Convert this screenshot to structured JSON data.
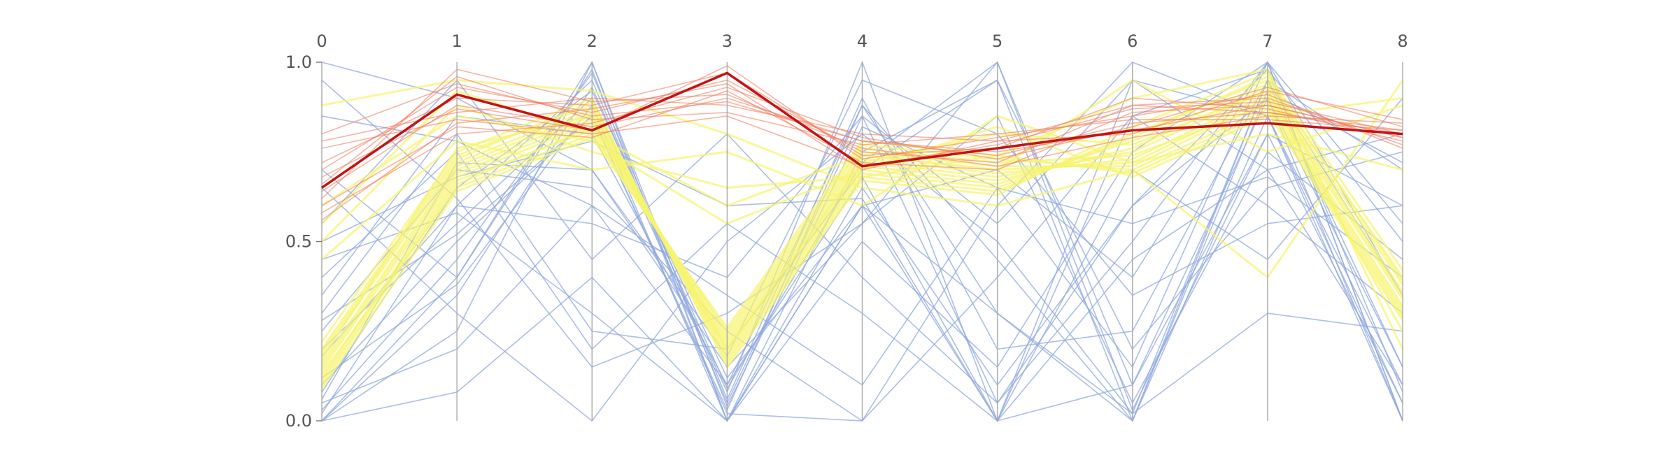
{
  "chart_data": {
    "type": "parallel-coordinates",
    "axes": [
      "0",
      "1",
      "2",
      "3",
      "4",
      "5",
      "6",
      "7",
      "8"
    ],
    "ylim": [
      0,
      1
    ],
    "yticks": [
      "0.0",
      "0.5",
      "1.0"
    ],
    "colors": {
      "low": "#8fa8de",
      "mid": "#f7f46e",
      "high": "#f0785a",
      "highlight": "#c41212"
    },
    "highlight": {
      "name": "",
      "values": [
        0.65,
        0.91,
        0.81,
        0.97,
        0.71,
        0.76,
        0.81,
        0.83,
        0.8
      ]
    },
    "series": [
      {
        "values": [
          0.64,
          0.88,
          0.82,
          0.9,
          0.78,
          0.74,
          0.83,
          0.86,
          0.8
        ],
        "color": "high"
      },
      {
        "values": [
          0.7,
          0.93,
          0.86,
          0.95,
          0.75,
          0.72,
          0.88,
          0.9,
          0.77
        ],
        "color": "high"
      },
      {
        "values": [
          0.78,
          0.86,
          0.9,
          0.88,
          0.8,
          0.78,
          0.8,
          0.92,
          0.84
        ],
        "color": "high"
      },
      {
        "values": [
          0.6,
          0.82,
          0.79,
          0.92,
          0.72,
          0.7,
          0.86,
          0.88,
          0.79
        ],
        "color": "high"
      },
      {
        "values": [
          0.66,
          0.96,
          0.84,
          0.86,
          0.77,
          0.8,
          0.84,
          0.84,
          0.81
        ],
        "color": "high"
      },
      {
        "values": [
          0.72,
          0.9,
          0.88,
          0.97,
          0.74,
          0.76,
          0.9,
          0.87,
          0.78
        ],
        "color": "high"
      },
      {
        "values": [
          0.58,
          0.8,
          0.83,
          0.93,
          0.79,
          0.73,
          0.82,
          0.93,
          0.82
        ],
        "color": "high"
      },
      {
        "values": [
          0.76,
          0.84,
          0.8,
          0.85,
          0.71,
          0.77,
          0.87,
          0.89,
          0.8
        ],
        "color": "high"
      },
      {
        "values": [
          0.62,
          0.98,
          0.89,
          0.91,
          0.76,
          0.71,
          0.79,
          0.85,
          0.83
        ],
        "color": "high"
      },
      {
        "values": [
          0.68,
          0.87,
          0.81,
          0.99,
          0.73,
          0.79,
          0.85,
          0.91,
          0.76
        ],
        "color": "high"
      },
      {
        "values": [
          0.8,
          0.94,
          0.85,
          0.89,
          0.78,
          0.75,
          0.81,
          0.88,
          0.79
        ],
        "color": "high"
      },
      {
        "values": [
          0.56,
          0.83,
          0.87,
          0.94,
          0.7,
          0.78,
          0.88,
          0.86,
          0.81
        ],
        "color": "high"
      },
      {
        "values": [
          0.15,
          0.7,
          0.85,
          0.2,
          0.72,
          0.68,
          0.75,
          0.92,
          0.35
        ],
        "color": "mid"
      },
      {
        "values": [
          0.12,
          0.68,
          0.83,
          0.22,
          0.74,
          0.7,
          0.72,
          0.9,
          0.32
        ],
        "color": "mid"
      },
      {
        "values": [
          0.18,
          0.72,
          0.87,
          0.18,
          0.7,
          0.66,
          0.78,
          0.94,
          0.38
        ],
        "color": "mid"
      },
      {
        "values": [
          0.1,
          0.66,
          0.82,
          0.24,
          0.76,
          0.72,
          0.74,
          0.88,
          0.3
        ],
        "color": "mid"
      },
      {
        "values": [
          0.2,
          0.74,
          0.88,
          0.16,
          0.68,
          0.64,
          0.8,
          0.95,
          0.4
        ],
        "color": "mid"
      },
      {
        "values": [
          0.14,
          0.69,
          0.84,
          0.21,
          0.73,
          0.69,
          0.73,
          0.91,
          0.34
        ],
        "color": "mid"
      },
      {
        "values": [
          0.16,
          0.71,
          0.86,
          0.19,
          0.71,
          0.67,
          0.76,
          0.93,
          0.36
        ],
        "color": "mid"
      },
      {
        "values": [
          0.11,
          0.67,
          0.81,
          0.23,
          0.75,
          0.71,
          0.71,
          0.89,
          0.31
        ],
        "color": "mid"
      },
      {
        "values": [
          0.19,
          0.73,
          0.89,
          0.17,
          0.69,
          0.65,
          0.79,
          0.96,
          0.39
        ],
        "color": "mid"
      },
      {
        "values": [
          0.13,
          0.65,
          0.8,
          0.25,
          0.77,
          0.73,
          0.7,
          0.87,
          0.29
        ],
        "color": "mid"
      },
      {
        "values": [
          0.22,
          0.75,
          0.9,
          0.15,
          0.67,
          0.63,
          0.82,
          0.97,
          0.42
        ],
        "color": "mid"
      },
      {
        "values": [
          0.09,
          0.64,
          0.79,
          0.26,
          0.78,
          0.74,
          0.69,
          0.86,
          0.28
        ],
        "color": "mid"
      },
      {
        "values": [
          0.17,
          0.76,
          0.85,
          0.2,
          0.72,
          0.8,
          0.77,
          0.92,
          0.25
        ],
        "color": "mid"
      },
      {
        "values": [
          0.6,
          0.85,
          0.78,
          0.55,
          0.7,
          0.82,
          0.68,
          0.85,
          0.9
        ],
        "color": "mid"
      },
      {
        "values": [
          0.55,
          0.92,
          0.8,
          0.6,
          0.74,
          0.7,
          0.95,
          0.75,
          0.88
        ],
        "color": "mid"
      },
      {
        "values": [
          0.88,
          0.95,
          0.92,
          0.8,
          0.65,
          0.6,
          0.7,
          0.4,
          0.95
        ],
        "color": "mid"
      },
      {
        "values": [
          0.45,
          0.78,
          0.7,
          0.75,
          0.6,
          0.85,
          0.72,
          0.8,
          0.7
        ],
        "color": "mid"
      },
      {
        "values": [
          0.5,
          0.88,
          0.75,
          0.65,
          0.68,
          0.74,
          0.9,
          0.98,
          0.2
        ],
        "color": "mid"
      },
      {
        "values": [
          0.0,
          0.4,
          1.0,
          0.0,
          0.6,
          0.0,
          0.95,
          0.7,
          0.1
        ],
        "color": "low"
      },
      {
        "values": [
          0.02,
          0.6,
          0.95,
          0.05,
          0.85,
          0.05,
          0.5,
          1.0,
          0.0
        ],
        "color": "low"
      },
      {
        "values": [
          1.0,
          0.9,
          0.7,
          0.15,
          0.55,
          1.0,
          0.03,
          0.8,
          0.6
        ],
        "color": "low"
      },
      {
        "values": [
          0.05,
          0.2,
          0.6,
          0.1,
          0.88,
          0.3,
          0.0,
          0.95,
          0.35
        ],
        "color": "low"
      },
      {
        "values": [
          0.3,
          0.8,
          0.25,
          0.2,
          0.7,
          0.95,
          0.2,
          0.65,
          0.75
        ],
        "color": "low"
      },
      {
        "values": [
          0.1,
          0.5,
          0.85,
          0.02,
          0.0,
          0.6,
          1.0,
          0.85,
          0.05
        ],
        "color": "low"
      },
      {
        "values": [
          0.0,
          0.08,
          0.4,
          0.0,
          0.65,
          0.1,
          0.6,
          0.98,
          0.5
        ],
        "color": "low"
      },
      {
        "values": [
          0.4,
          0.75,
          0.2,
          0.55,
          0.3,
          0.0,
          0.1,
          0.9,
          0.15
        ],
        "color": "low"
      },
      {
        "values": [
          0.2,
          0.55,
          0.9,
          0.08,
          1.0,
          0.0,
          0.7,
          0.45,
          0.9
        ],
        "color": "low"
      },
      {
        "values": [
          0.65,
          0.3,
          0.0,
          0.5,
          0.8,
          0.5,
          0.02,
          0.3,
          0.25
        ],
        "color": "low"
      },
      {
        "values": [
          0.08,
          0.65,
          0.92,
          0.12,
          0.6,
          0.7,
          0.4,
          1.0,
          0.0
        ],
        "color": "low"
      },
      {
        "values": [
          0.95,
          0.62,
          0.15,
          0.3,
          0.55,
          0.85,
          0.05,
          0.75,
          0.45
        ],
        "color": "low"
      },
      {
        "values": [
          0.03,
          0.45,
          0.97,
          0.06,
          0.9,
          0.2,
          0.25,
          0.95,
          0.7
        ],
        "color": "low"
      },
      {
        "values": [
          0.25,
          0.7,
          0.65,
          0.25,
          0.0,
          0.4,
          0.85,
          0.6,
          0.3
        ],
        "color": "low"
      },
      {
        "values": [
          0.12,
          0.38,
          0.88,
          0.0,
          0.75,
          0.95,
          0.0,
          0.85,
          0.1
        ],
        "color": "low"
      },
      {
        "values": [
          0.55,
          0.95,
          0.45,
          0.8,
          0.4,
          0.05,
          0.6,
          0.9,
          0.0
        ],
        "color": "low"
      },
      {
        "values": [
          0.0,
          0.25,
          1.0,
          0.04,
          0.82,
          0.65,
          0.15,
          1.0,
          0.55
        ],
        "color": "low"
      },
      {
        "values": [
          0.35,
          0.85,
          0.8,
          0.1,
          0.68,
          0.0,
          0.45,
          0.7,
          0.8
        ],
        "color": "low"
      },
      {
        "values": [
          0.18,
          0.6,
          0.55,
          0.4,
          0.85,
          0.55,
          0.95,
          0.85,
          0.0
        ],
        "color": "low"
      },
      {
        "values": [
          0.7,
          0.4,
          0.98,
          0.0,
          0.6,
          0.3,
          0.02,
          0.95,
          0.15
        ],
        "color": "low"
      },
      {
        "values": [
          0.06,
          0.72,
          0.7,
          0.18,
          0.95,
          0.8,
          0.35,
          0.55,
          0.6
        ],
        "color": "low"
      },
      {
        "values": [
          0.45,
          0.58,
          0.3,
          0.0,
          0.5,
          0.15,
          0.75,
          1.0,
          0.35
        ],
        "color": "low"
      },
      {
        "values": [
          0.0,
          0.35,
          0.93,
          0.09,
          0.72,
          1.0,
          0.1,
          0.8,
          0.05
        ],
        "color": "low"
      },
      {
        "values": [
          0.85,
          0.78,
          0.6,
          0.35,
          0.1,
          0.65,
          0.55,
          0.68,
          0.4
        ],
        "color": "low"
      },
      {
        "values": [
          0.28,
          0.52,
          0.85,
          0.03,
          0.88,
          0.45,
          0.0,
          0.92,
          0.72
        ],
        "color": "low"
      },
      {
        "values": [
          0.5,
          0.68,
          0.78,
          0.6,
          0.62,
          0.0,
          0.85,
          0.98,
          0.08
        ],
        "color": "low"
      }
    ]
  }
}
